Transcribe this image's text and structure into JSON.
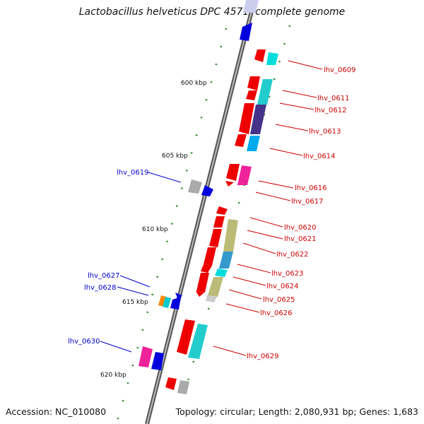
{
  "title": "Lactobacillus helveticus DPC 4571, complete genome",
  "footer": {
    "accession": "Accession: NC_010080",
    "summary": "Topology: circular; Length: 2,080,931 bp; Genes: 1,683"
  },
  "colors": {
    "red_label": "#cc0000",
    "blue_label": "#0000cc"
  },
  "ticks": [
    {
      "label": "600 kbp"
    },
    {
      "label": "605 kbp"
    },
    {
      "label": "610 kbp"
    },
    {
      "label": "615 kbp"
    },
    {
      "label": "620 kbp"
    }
  ],
  "gene_labels": {
    "right": [
      "lhv_0609",
      "lhv_0611",
      "lhv_0612",
      "lhv_0613",
      "lhv_0614",
      "lhv_0616",
      "lhv_0617",
      "lhv_0620",
      "lhv_0621",
      "lhv_0622",
      "lhv_0623",
      "lhv_0624",
      "lhv_0625",
      "lhv_0626",
      "lhv_0629"
    ],
    "left": [
      "lhv_0619",
      "lhv_0627",
      "lhv_0628",
      "lhv_0630"
    ]
  }
}
